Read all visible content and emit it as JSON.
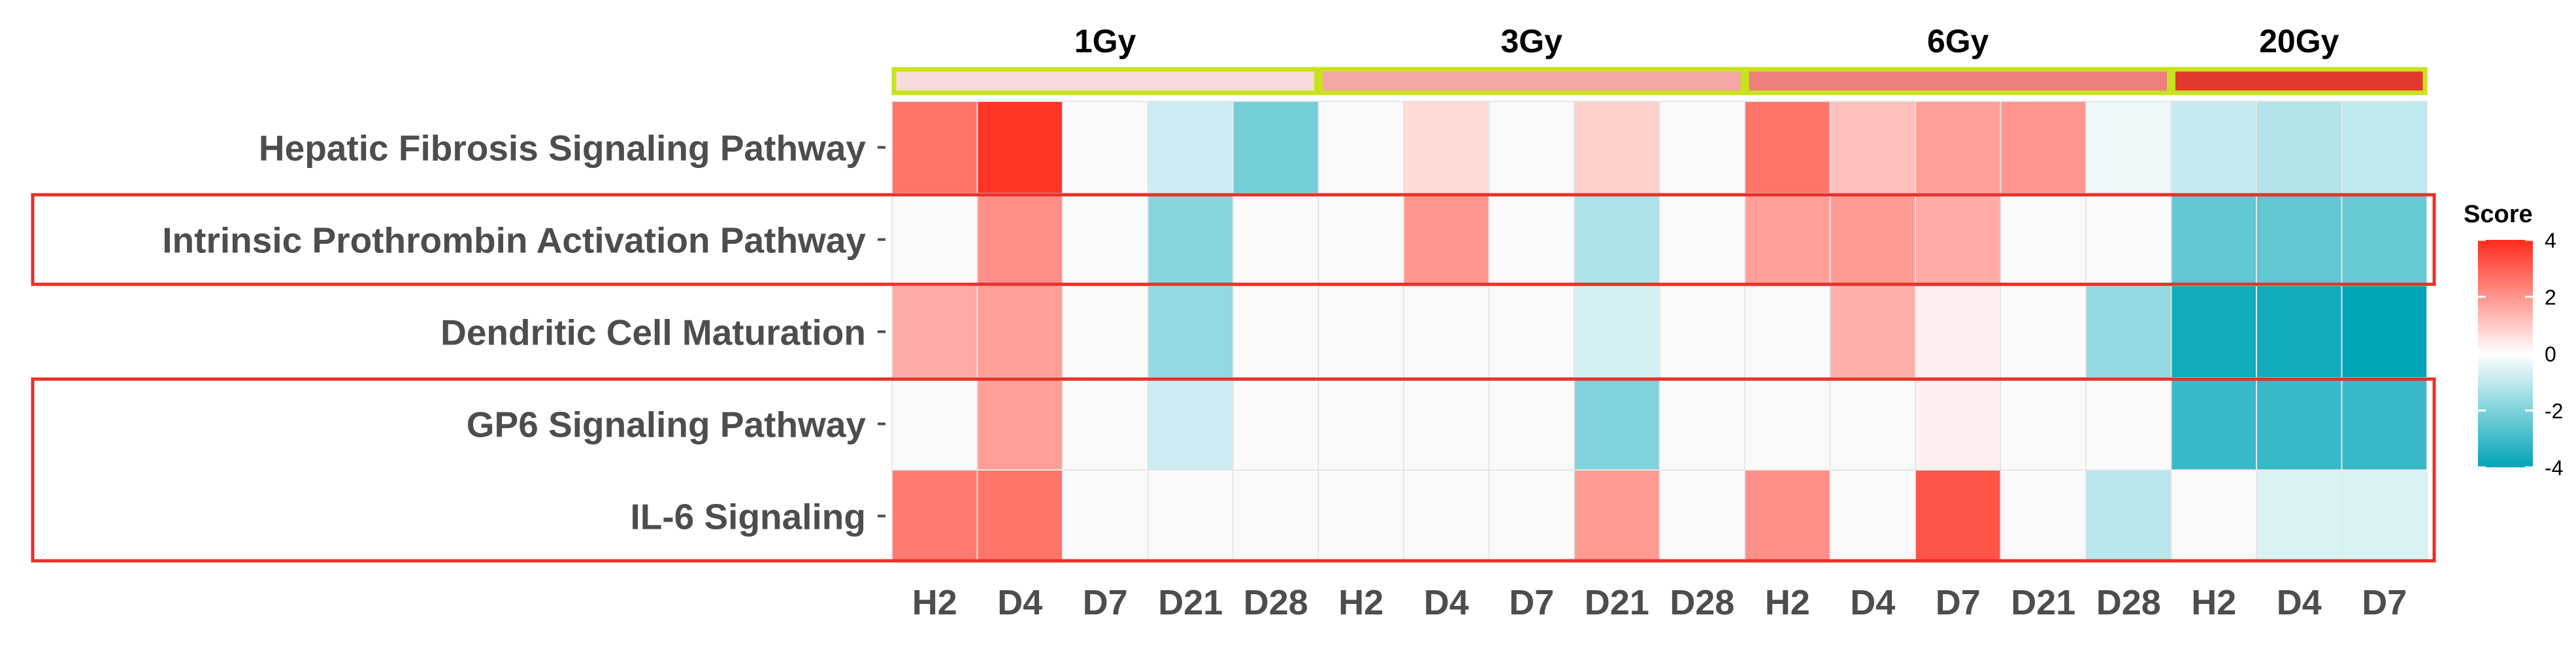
{
  "chart_data": {
    "type": "heatmap",
    "title": "",
    "xlabel": "",
    "ylabel": "",
    "groups": [
      {
        "name": "1Gy",
        "color": "#f8dcdc",
        "columns": [
          "H2",
          "D4",
          "D7",
          "D21",
          "D28"
        ]
      },
      {
        "name": "3Gy",
        "color": "#f4a7a5",
        "columns": [
          "H2",
          "D4",
          "D7",
          "D21",
          "D28"
        ]
      },
      {
        "name": "6Gy",
        "color": "#ef7f7d",
        "columns": [
          "H2",
          "D4",
          "D7",
          "D21",
          "D28"
        ]
      },
      {
        "name": "20Gy",
        "color": "#e33a30",
        "columns": [
          "H2",
          "D4",
          "D7"
        ]
      }
    ],
    "rows": [
      "Hepatic Fibrosis Signaling Pathway",
      "Intrinsic Prothrombin Activation Pathway",
      "Dendritic Cell Maturation",
      "GP6 Signaling Pathway",
      "IL-6 Signaling"
    ],
    "values": [
      [
        2.6,
        3.8,
        0,
        -0.8,
        -2.2,
        0,
        0.7,
        0,
        0.9,
        0,
        2.6,
        1.2,
        1.8,
        2.0,
        -0.3,
        -0.9,
        -1.2,
        -1.0
      ],
      [
        0,
        2.1,
        0,
        -1.9,
        0,
        0,
        2.0,
        0,
        -1.3,
        0,
        1.8,
        1.9,
        1.6,
        0,
        0,
        -2.5,
        -2.5,
        -2.4
      ],
      [
        1.6,
        1.8,
        0,
        -1.7,
        0,
        0,
        0,
        0,
        -0.7,
        0,
        0,
        1.5,
        0.3,
        0,
        -1.7,
        -3.7,
        -3.7,
        -4.0
      ],
      [
        0,
        1.8,
        0,
        -0.8,
        0,
        0,
        0,
        0,
        -2.0,
        0,
        0,
        0,
        0.3,
        0,
        0,
        -3.1,
        -3.1,
        -3.1
      ],
      [
        2.5,
        2.6,
        0,
        0,
        0,
        0,
        0,
        0,
        1.9,
        0,
        2.1,
        0,
        3.2,
        0,
        -1.1,
        0,
        -0.6,
        -0.6
      ]
    ],
    "highlighted_rows": [
      1,
      3,
      4
    ],
    "highlight_color": "#e8302a",
    "group_border_color": "#c8e31e",
    "legend": {
      "title": "Score",
      "ticks": [
        4,
        2,
        0,
        -2,
        -4
      ],
      "min": -4,
      "max": 4,
      "colors": {
        "low": "#00a5b8",
        "mid": "#ffffff",
        "high": "#ff2a1a"
      },
      "position": "right"
    }
  }
}
